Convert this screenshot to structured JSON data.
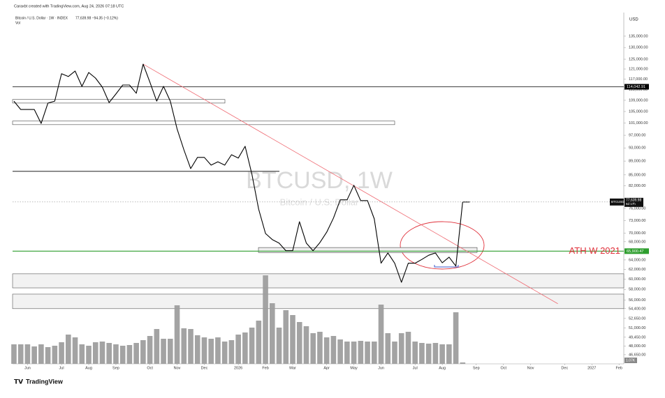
{
  "chart_data": {
    "type": "line",
    "credit": "Caraxbt created with TradingView.com, Aug 24, 2026 07:18 UTC",
    "symbol_line": "Bitcoin / U.S. Dollar · 1W · INDEX",
    "quote": "77,639.98 −94.35 (−0.12%)",
    "volume_label": "Vol",
    "currency": "USD",
    "watermark": "BTCUSD, 1W",
    "watermark_sub": "Bitcoin / U.S. Dollar",
    "brand": "TradingView",
    "log_scale": true,
    "ylim": [
      45250,
      145400
    ],
    "xlim": [
      -0.2,
      89.7
    ],
    "yticks": [
      {
        "value": 135000,
        "label": "135,000.00"
      },
      {
        "value": 130000,
        "label": "130,000.00"
      },
      {
        "value": 125000,
        "label": "125,000.00"
      },
      {
        "value": 121000,
        "label": "121,000.00"
      },
      {
        "value": 117000,
        "label": "117,000.00"
      },
      {
        "value": 113000,
        "label": "113,000.00"
      },
      {
        "value": 109000,
        "label": "109,000.00"
      },
      {
        "value": 105000,
        "label": "105,000.00"
      },
      {
        "value": 101000,
        "label": "101,000.00"
      },
      {
        "value": 97000,
        "label": "97,000.00"
      },
      {
        "value": 93000,
        "label": "93,000.00"
      },
      {
        "value": 89000,
        "label": "89,000.00"
      },
      {
        "value": 85000,
        "label": "85,000.00"
      },
      {
        "value": 82000,
        "label": "82,000.00"
      },
      {
        "value": 76000,
        "label": "76,000.00"
      },
      {
        "value": 73000,
        "label": "73,000.00"
      },
      {
        "value": 70000,
        "label": "70,000.00"
      },
      {
        "value": 68000,
        "label": "68,000.00"
      },
      {
        "value": 64000,
        "label": "64,000.00"
      },
      {
        "value": 62000,
        "label": "62,000.00"
      },
      {
        "value": 60000,
        "label": "60,000.00"
      },
      {
        "value": 58000,
        "label": "58,000.00"
      },
      {
        "value": 56000,
        "label": "56,000.00"
      },
      {
        "value": 54400,
        "label": "54,400.00"
      },
      {
        "value": 52650,
        "label": "52,650.00"
      },
      {
        "value": 51000,
        "label": "51,000.00"
      },
      {
        "value": 49450,
        "label": "49,450.00"
      },
      {
        "value": 48000,
        "label": "48,000.00"
      },
      {
        "value": 46650,
        "label": "46,650.00"
      }
    ],
    "xticks": [
      {
        "value": 2,
        "label": "Jun"
      },
      {
        "value": 7,
        "label": "Jul"
      },
      {
        "value": 11,
        "label": "Aug"
      },
      {
        "value": 15,
        "label": "Sep"
      },
      {
        "value": 20,
        "label": "Oct"
      },
      {
        "value": 24,
        "label": "Nov"
      },
      {
        "value": 28,
        "label": "Dec"
      },
      {
        "value": 33,
        "label": "2026"
      },
      {
        "value": 37,
        "label": "Feb"
      },
      {
        "value": 41,
        "label": "Mar"
      },
      {
        "value": 46,
        "label": "Apr"
      },
      {
        "value": 50,
        "label": "May"
      },
      {
        "value": 54,
        "label": "Jun"
      },
      {
        "value": 59,
        "label": "Jul"
      },
      {
        "value": 63,
        "label": "Aug"
      },
      {
        "value": 68,
        "label": "Sep"
      },
      {
        "value": 72,
        "label": "Oct"
      },
      {
        "value": 76,
        "label": "Nov"
      },
      {
        "value": 81,
        "label": "Dec"
      },
      {
        "value": 85,
        "label": "2027"
      },
      {
        "value": 89,
        "label": "Feb"
      }
    ],
    "series": [
      {
        "name": "BTCUSD",
        "color": "#000000",
        "values": [
          108700,
          105700,
          105700,
          105700,
          100900,
          108000,
          108700,
          119100,
          118000,
          120200,
          114200,
          119600,
          117400,
          113900,
          108200,
          111300,
          114700,
          114700,
          111600,
          123000,
          115800,
          108700,
          114200,
          108700,
          99100,
          92400,
          86800,
          90100,
          90100,
          87800,
          88800,
          87800,
          90900,
          89900,
          93500,
          85200,
          75800,
          69900,
          68500,
          67700,
          66000,
          66000,
          72700,
          67700,
          66000,
          67800,
          70200,
          73600,
          78200,
          78200,
          82100,
          78000,
          78000,
          73400,
          63300,
          65500,
          63300,
          59400,
          63300,
          63300,
          64100,
          65000,
          65500,
          63400,
          64600,
          62700,
          77639.98
        ]
      },
      {
        "name": "Vol",
        "color": "#9e9e9e",
        "values": [
          28,
          28,
          28,
          25,
          28,
          24,
          26,
          31,
          42,
          38,
          28,
          26,
          31,
          32,
          30,
          28,
          26,
          27,
          30,
          34,
          40,
          50,
          36,
          36,
          84,
          51,
          50,
          41,
          38,
          36,
          38,
          32,
          34,
          42,
          45,
          52,
          62,
          127,
          87,
          52,
          77,
          70,
          60,
          54,
          44,
          46,
          38,
          40,
          35,
          32,
          32,
          33,
          32,
          32,
          85,
          44,
          32,
          44,
          46,
          32,
          30,
          29,
          30,
          28,
          28,
          74,
          2
        ]
      }
    ],
    "price_badge": {
      "symbol": "BTCUSD",
      "price": "77,639.98",
      "countdown": "6d 17h"
    },
    "volume_badge": "1.07K",
    "levels": [
      {
        "price": 114042.91,
        "label": "114,042.91",
        "color": "#000000"
      },
      {
        "price": 65900.47,
        "label": "65,900.47",
        "color": "#2e9e2e",
        "note": "ATH W 2021"
      }
    ],
    "support_line": 86000,
    "zones": [
      {
        "low": 108000,
        "high": 109300
      },
      {
        "low": 100500,
        "high": 101700
      },
      {
        "low": 65600,
        "high": 66700
      },
      {
        "low": 58300,
        "high": 61100
      },
      {
        "low": 54400,
        "high": 57100
      }
    ],
    "trendline": {
      "from": [
        19,
        123000
      ],
      "to": [
        80,
        55300
      ],
      "color": "#ef6b73"
    }
  }
}
